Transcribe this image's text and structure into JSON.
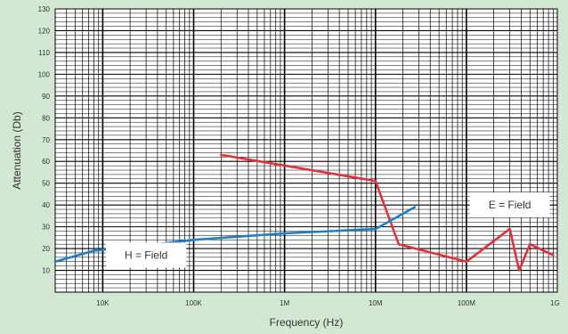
{
  "chart_data": {
    "type": "line",
    "xscale": "log",
    "xlim": [
      3000,
      1000000000
    ],
    "ylim": [
      0,
      130
    ],
    "xlabel": "Frequency (Hz)",
    "ylabel": "Attenuation (Db)",
    "x_tick_labels": [
      {
        "value": 10000,
        "label": "10K"
      },
      {
        "value": 100000,
        "label": "100K"
      },
      {
        "value": 1000000,
        "label": "1M"
      },
      {
        "value": 10000000,
        "label": "10M"
      },
      {
        "value": 100000000,
        "label": "100M"
      },
      {
        "value": 1000000000,
        "label": "1G"
      }
    ],
    "y_ticks": [
      10,
      20,
      30,
      40,
      50,
      60,
      70,
      80,
      90,
      100,
      110,
      120,
      130
    ],
    "grid": true,
    "series": [
      {
        "color": "#e0323a",
        "points": [
          [
            200000,
            63
          ],
          [
            10000000,
            51
          ],
          [
            18000000,
            22
          ],
          [
            100000000,
            14
          ],
          [
            300000000,
            29
          ],
          [
            380000000,
            10
          ],
          [
            500000000,
            22
          ],
          [
            900000000,
            17
          ]
        ]
      },
      {
        "color": "#1f7fc6",
        "points": [
          [
            3000,
            14
          ],
          [
            8000,
            19
          ],
          [
            30000,
            21.5
          ],
          [
            100000,
            24
          ],
          [
            1000000,
            27
          ],
          [
            10000000,
            29
          ],
          [
            27000000,
            39
          ]
        ]
      }
    ],
    "annotations": [
      {
        "text": "H = Field",
        "x": 30000,
        "y": 17
      },
      {
        "text": "E = Field",
        "x": 300000000,
        "y": 40
      }
    ]
  }
}
